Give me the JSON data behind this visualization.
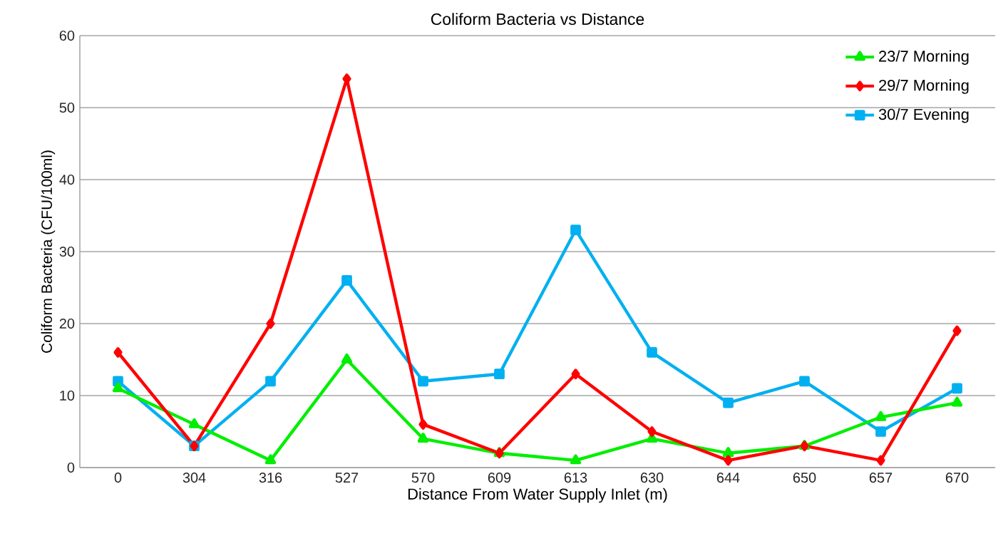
{
  "chart_data": {
    "type": "line",
    "title": "Coliform Bacteria  vs  Distance",
    "xlabel": "Distance From Water Supply Inlet (m)",
    "ylabel": "Coliform Bacteria (CFU/100ml)",
    "categories": [
      "0",
      "304",
      "316",
      "527",
      "570",
      "609",
      "613",
      "630",
      "644",
      "650",
      "657",
      "670"
    ],
    "series": [
      {
        "name": "23/7 Morning",
        "color": "#00ee00",
        "marker": "triangle",
        "values": [
          11,
          6,
          1,
          15,
          4,
          2,
          1,
          4,
          2,
          3,
          7,
          9
        ]
      },
      {
        "name": "29/7 Morning",
        "color": "#ff0000",
        "marker": "diamond",
        "values": [
          16,
          3,
          20,
          54,
          6,
          2,
          13,
          5,
          1,
          3,
          1,
          19
        ]
      },
      {
        "name": "30/7 Evening",
        "color": "#00b0f0",
        "marker": "square",
        "values": [
          12,
          3,
          12,
          26,
          12,
          13,
          33,
          16,
          9,
          12,
          5,
          11
        ]
      }
    ],
    "ylim": [
      0,
      60
    ],
    "yticks": [
      0,
      10,
      20,
      30,
      40,
      50,
      60
    ],
    "grid": "y",
    "legend": "top right",
    "line_style": "solid"
  }
}
